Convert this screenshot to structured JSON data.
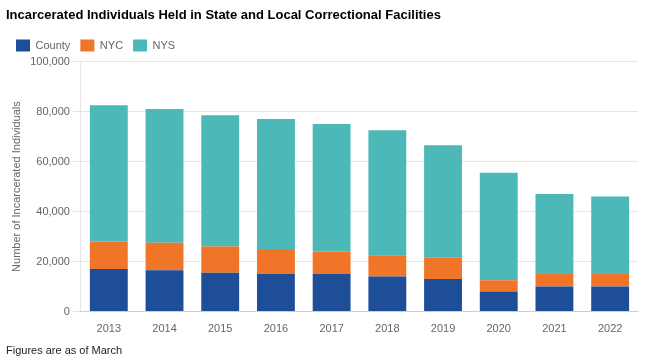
{
  "chart_data": {
    "type": "bar",
    "stacked": true,
    "title": "Incarcerated Individuals Held in State and Local Correctional Facilities",
    "ylabel": "Number of Incarcerated Individuals",
    "annotation": "Figures are as of March",
    "categories": [
      "2013",
      "2014",
      "2015",
      "2016",
      "2017",
      "2018",
      "2019",
      "2020",
      "2021",
      "2022"
    ],
    "series": [
      {
        "name": "County",
        "color": "#1F4E99",
        "values": [
          17000,
          16500,
          15500,
          15000,
          15000,
          14000,
          13000,
          8000,
          10000,
          10000
        ]
      },
      {
        "name": "NYC",
        "color": "#F07528",
        "values": [
          11000,
          11000,
          10500,
          10000,
          9000,
          8500,
          8500,
          4500,
          5000,
          5000
        ]
      },
      {
        "name": "NYS",
        "color": "#4DB8B8",
        "values": [
          54500,
          53500,
          52500,
          52000,
          51000,
          50000,
          45000,
          43000,
          32000,
          31000
        ]
      }
    ],
    "ylim": [
      0,
      100000
    ],
    "yticks": [
      0,
      {
        "value": 20000,
        "label": "20,000"
      },
      {
        "value": 40000,
        "label": "40,000"
      },
      {
        "value": 60000,
        "label": "60,000"
      },
      {
        "value": 80000,
        "label": "80,000"
      },
      {
        "value": 100000,
        "label": "100,000"
      }
    ],
    "grid": true,
    "legend": "upper left"
  }
}
